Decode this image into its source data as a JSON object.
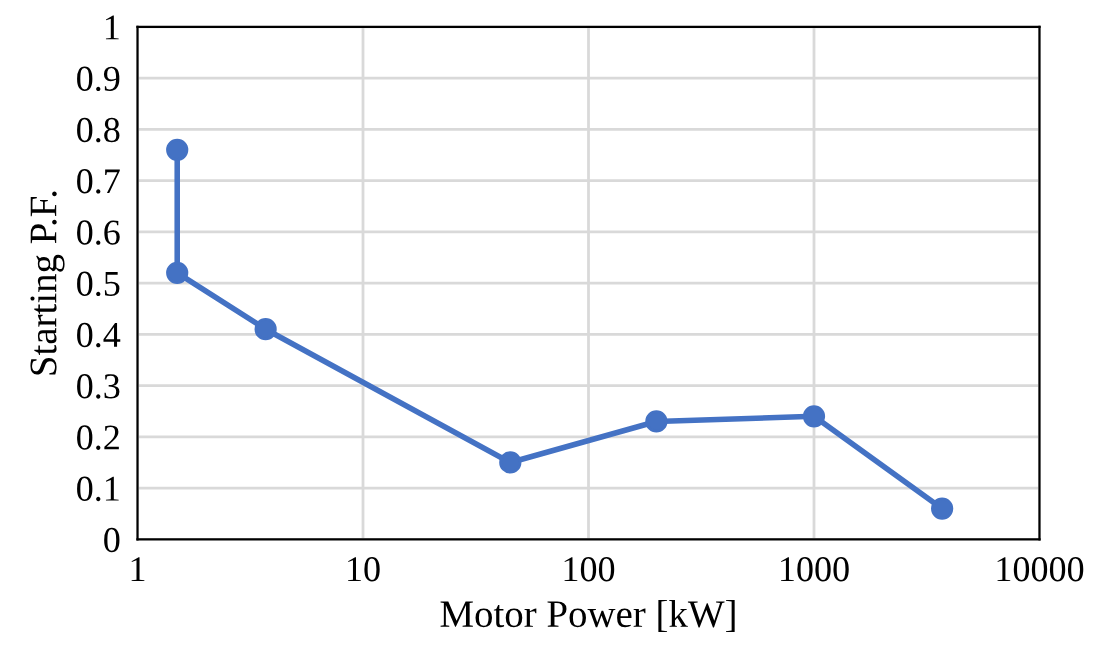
{
  "chart_data": {
    "type": "line",
    "xlabel": "Motor Power [kW]",
    "ylabel": "Starting P.F.",
    "x": [
      1.5,
      1.5,
      3.7,
      45,
      200,
      1000,
      3700
    ],
    "series": [
      {
        "color": "#4472c4",
        "values": [
          0.76,
          0.52,
          0.41,
          0.15,
          0.23,
          0.24,
          0.06
        ]
      }
    ],
    "log": "x",
    "xlim": [
      1,
      10000
    ],
    "xticks": [
      1,
      10,
      100,
      1000,
      10000
    ],
    "ylim": [
      0,
      1
    ],
    "yticks": [
      0,
      0.1,
      0.2,
      0.3,
      0.4,
      0.5,
      0.6,
      0.7,
      0.8,
      0.9,
      1
    ],
    "grid": true,
    "marker": "circle",
    "line_style": "solid"
  }
}
